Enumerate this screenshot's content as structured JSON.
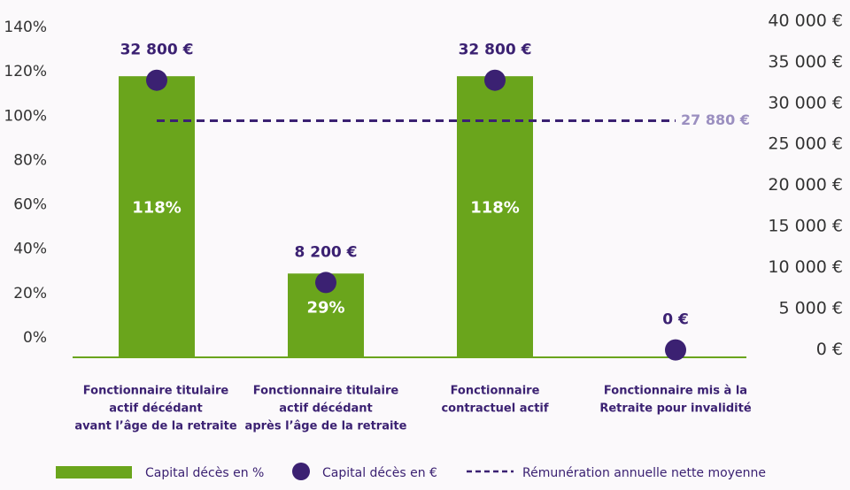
{
  "chart_data": {
    "type": "bar",
    "categories": [
      [
        "Fonctionnaire titulaire",
        "actif décédant",
        "avant l’âge de la retraite"
      ],
      [
        "Fonctionnaire titulaire",
        "actif décédant",
        "après l’âge de la retraite"
      ],
      [
        "Fonctionnaire",
        "contractuel actif"
      ],
      [
        "Fonctionnaire mis à la",
        "Retraite pour invalidité"
      ]
    ],
    "series": [
      {
        "name": "Capital décès en %",
        "type": "bar",
        "axis": "left",
        "values": [
          118,
          29,
          118,
          0
        ],
        "labels": [
          "118%",
          "29%",
          "118%",
          ""
        ],
        "color": "#6aa51c"
      },
      {
        "name": "Capital décès en €",
        "type": "scatter",
        "axis": "right",
        "values": [
          32800,
          8200,
          32800,
          0
        ],
        "labels": [
          "32 800 €",
          "8 200 €",
          "32 800 €",
          "0 €"
        ],
        "color": "#3b2172"
      }
    ],
    "reference_line": {
      "name": "Rémunération annuelle nette moyenne",
      "value": 27880,
      "label": "27 880 €",
      "axis": "right",
      "color": "#3b2172",
      "label_color": "#9b8fc0"
    },
    "left_axis": {
      "ticks": [
        0,
        20,
        40,
        60,
        80,
        100,
        120,
        140
      ],
      "tick_labels": [
        "0%",
        "20%",
        "40%",
        "60%",
        "80%",
        "100%",
        "120%",
        "140%"
      ],
      "ylim": [
        -8.8,
        144
      ]
    },
    "right_axis": {
      "ticks": [
        0,
        5000,
        10000,
        15000,
        20000,
        25000,
        30000,
        35000,
        40000
      ],
      "tick_labels": [
        "0 €",
        "5 000 €",
        "10 000 €",
        "15 000 €",
        "20 000 €",
        "25 000 €",
        "30 000 €",
        "35 000 €",
        "40 000 €"
      ],
      "ylim": [
        -900,
        40300
      ]
    },
    "grid": false,
    "legend_position": "bottom"
  }
}
